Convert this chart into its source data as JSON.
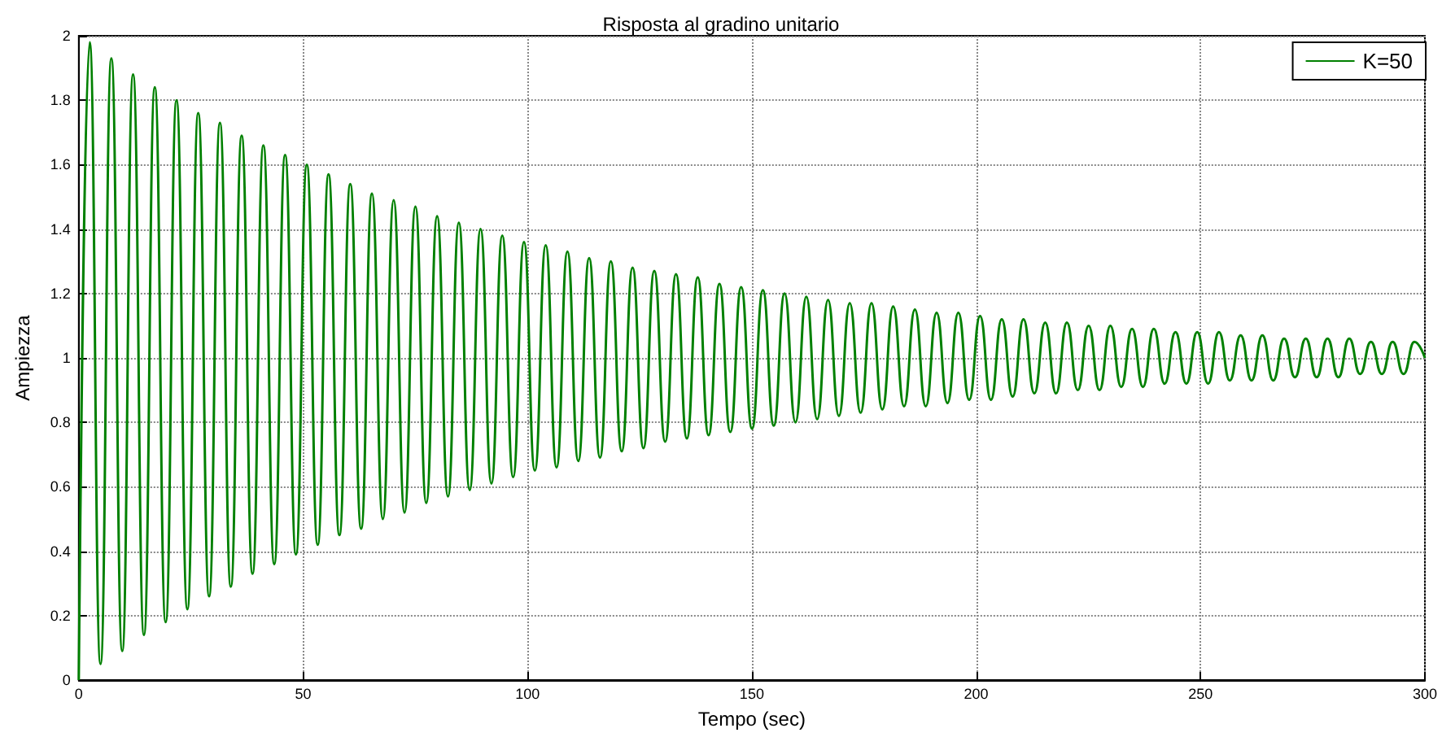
{
  "chart_data": {
    "type": "line",
    "title": "Risposta al gradino unitario",
    "xlabel": "Tempo (sec)",
    "ylabel": "Ampiezza",
    "x": [
      0,
      2.42,
      4.84,
      7.26,
      9.68,
      12.1,
      14.52,
      16.94,
      19.36,
      21.78,
      24.2,
      26.62,
      29.04,
      31.46,
      33.88,
      36.3,
      38.72,
      41.14,
      43.56,
      45.98,
      48.4,
      50.82,
      53.24,
      55.66,
      58.08,
      60.5,
      62.92,
      65.34,
      67.76,
      70.18,
      72.6,
      75.02,
      77.44,
      79.86,
      82.28,
      84.7,
      87.12,
      89.54,
      91.96,
      94.38,
      96.8,
      99.22,
      101.64,
      104.06,
      106.48,
      108.9,
      111.32,
      113.74,
      116.16,
      118.58,
      121,
      123.42,
      125.84,
      128.26,
      130.68,
      133.1,
      135.52,
      137.94,
      140.36,
      142.78,
      145.2,
      147.62,
      150.04,
      152.46,
      154.88,
      157.3,
      159.72,
      162.14,
      164.56,
      166.98,
      169.4,
      171.82,
      174.24,
      176.66,
      179.08,
      181.5,
      183.92,
      186.34,
      188.76,
      191.18,
      193.6,
      196.02,
      198.44,
      200.86,
      203.28,
      205.7,
      208.12,
      210.54,
      212.96,
      215.38,
      217.8,
      220.22,
      222.64,
      225.06,
      227.48,
      229.9,
      232.32,
      234.74,
      237.16,
      239.58,
      242,
      244.42,
      246.84,
      249.26,
      251.68,
      254.1,
      256.52,
      258.94,
      261.36,
      263.78,
      266.2,
      268.62,
      271.04,
      273.46,
      275.88,
      278.3,
      280.72,
      283.14,
      285.56,
      287.98,
      290.4,
      292.82,
      295.24,
      297.66,
      300
    ],
    "series": [
      {
        "name": "K=50",
        "color": "#008000",
        "values": [
          0,
          1.98,
          0.05,
          1.93,
          0.09,
          1.88,
          0.14,
          1.84,
          0.18,
          1.8,
          0.22,
          1.76,
          0.26,
          1.73,
          0.29,
          1.69,
          0.33,
          1.66,
          0.36,
          1.63,
          0.39,
          1.6,
          0.42,
          1.57,
          0.45,
          1.54,
          0.47,
          1.51,
          0.5,
          1.49,
          0.52,
          1.47,
          0.55,
          1.44,
          0.57,
          1.42,
          0.59,
          1.4,
          0.61,
          1.38,
          0.63,
          1.36,
          0.65,
          1.35,
          0.66,
          1.33,
          0.68,
          1.31,
          0.69,
          1.3,
          0.71,
          1.28,
          0.72,
          1.27,
          0.74,
          1.26,
          0.75,
          1.25,
          0.76,
          1.23,
          0.77,
          1.22,
          0.78,
          1.21,
          0.79,
          1.2,
          0.8,
          1.19,
          0.81,
          1.18,
          0.82,
          1.17,
          0.83,
          1.17,
          0.84,
          1.16,
          0.85,
          1.15,
          0.85,
          1.14,
          0.86,
          1.14,
          0.87,
          1.13,
          0.87,
          1.12,
          0.88,
          1.12,
          0.89,
          1.11,
          0.89,
          1.11,
          0.9,
          1.1,
          0.9,
          1.1,
          0.91,
          1.09,
          0.91,
          1.09,
          0.92,
          1.08,
          0.92,
          1.08,
          0.92,
          1.08,
          0.93,
          1.07,
          0.93,
          1.07,
          0.93,
          1.06,
          0.94,
          1.06,
          0.94,
          1.06,
          0.94,
          1.06,
          0.95,
          1.05,
          0.95,
          1.05,
          0.95,
          1.05,
          1
        ]
      }
    ],
    "xlim": [
      0,
      300
    ],
    "xticks": [
      0,
      50,
      100,
      150,
      200,
      250,
      300
    ],
    "ylim": [
      0,
      2
    ],
    "yticks": [
      0,
      0.2,
      0.4,
      0.6,
      0.8,
      1,
      1.2,
      1.4,
      1.6,
      1.8,
      2
    ],
    "grid": true,
    "legend": "top right"
  }
}
